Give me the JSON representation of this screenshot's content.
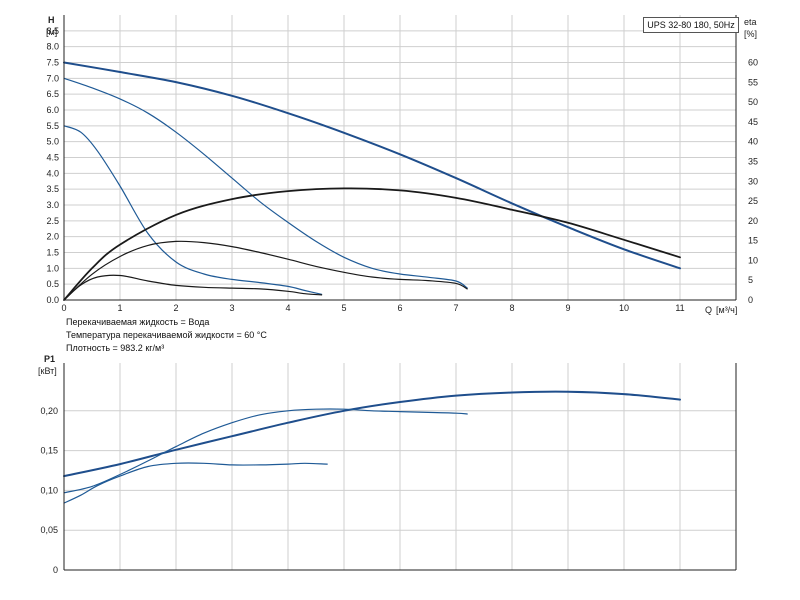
{
  "chart_data": [
    {
      "type": "line",
      "title": "UPS 32-80 180, 50Hz",
      "y_label": "H",
      "y_unit": "[м]",
      "y2_label": "eta",
      "y2_unit": "[%]",
      "x_label": "Q",
      "x_unit": "[м³/ч]",
      "xlim": [
        0,
        12
      ],
      "ylim": [
        0,
        9
      ],
      "y2lim": [
        0,
        72
      ],
      "x_ticks": [
        "0",
        "1",
        "2",
        "3",
        "4",
        "5",
        "6",
        "7",
        "8",
        "9",
        "10",
        "11"
      ],
      "y_ticks": [
        "0.0",
        "0.5",
        "1.0",
        "1.5",
        "2.0",
        "2.5",
        "3.0",
        "3.5",
        "4.0",
        "4.5",
        "5.0",
        "5.5",
        "6.0",
        "6.5",
        "7.0",
        "7.5",
        "8.0",
        "8.5"
      ],
      "y2_ticks": [
        "0",
        "5",
        "10",
        "15",
        "20",
        "25",
        "30",
        "35",
        "40",
        "45",
        "50",
        "55",
        "60"
      ],
      "grid": true,
      "series": [
        {
          "axis": "left",
          "color": "#1f4e8c",
          "width": 2,
          "x": [
            0,
            1,
            2,
            3,
            4,
            5,
            6,
            7,
            8,
            9,
            10,
            11
          ],
          "y": [
            7.5,
            7.2,
            6.88,
            6.45,
            5.9,
            5.28,
            4.6,
            3.85,
            3.05,
            2.3,
            1.6,
            1.0
          ]
        },
        {
          "axis": "left",
          "color": "#1f5a96",
          "width": 1.2,
          "x": [
            0,
            0.5,
            1,
            1.5,
            2,
            2.5,
            3,
            3.5,
            4,
            4.5,
            5,
            5.5,
            6,
            6.5,
            7,
            7.2
          ],
          "y": [
            7.0,
            6.7,
            6.35,
            5.9,
            5.3,
            4.6,
            3.85,
            3.1,
            2.45,
            1.85,
            1.35,
            1.0,
            0.82,
            0.72,
            0.6,
            0.38
          ]
        },
        {
          "axis": "left",
          "color": "#1f5a96",
          "width": 1.2,
          "x": [
            0,
            0.3,
            0.6,
            1,
            1.5,
            2,
            2.5,
            3,
            3.5,
            4,
            4.3,
            4.6
          ],
          "y": [
            5.5,
            5.3,
            4.7,
            3.6,
            2.1,
            1.2,
            0.82,
            0.65,
            0.55,
            0.43,
            0.3,
            0.18
          ]
        },
        {
          "axis": "right",
          "color": "#1a1a1a",
          "width": 1.8,
          "x": [
            0,
            0.5,
            1,
            2,
            3,
            4,
            5,
            6,
            7,
            8,
            9,
            10,
            11
          ],
          "y": [
            0,
            8,
            14,
            21.5,
            25.5,
            27.5,
            28.2,
            27.7,
            25.8,
            22.8,
            19.5,
            15.2,
            10.8
          ]
        },
        {
          "axis": "right",
          "color": "#1a1a1a",
          "width": 1.2,
          "x": [
            0,
            0.5,
            1,
            1.5,
            2,
            2.5,
            3,
            3.5,
            4,
            4.5,
            5,
            5.5,
            6,
            6.5,
            7,
            7.2
          ],
          "y": [
            0,
            6.5,
            11,
            13.8,
            14.8,
            14.5,
            13.5,
            12,
            10.3,
            8.5,
            7,
            5.8,
            5.2,
            4.9,
            4.2,
            2.8
          ]
        },
        {
          "axis": "right",
          "color": "#1a1a1a",
          "width": 1.2,
          "x": [
            0,
            0.3,
            0.6,
            1,
            1.5,
            2,
            2.5,
            3,
            3.5,
            4,
            4.3,
            4.6
          ],
          "y": [
            0,
            3.8,
            5.8,
            6.2,
            4.8,
            3.7,
            3.2,
            3.0,
            2.8,
            2.2,
            1.6,
            1.3
          ]
        }
      ]
    },
    {
      "type": "line",
      "y_label": "P1",
      "y_unit": "[кВт]",
      "xlim": [
        0,
        12
      ],
      "ylim": [
        0,
        0.26
      ],
      "y_ticks": [
        "0",
        "0,05",
        "0,10",
        "0,15",
        "0,20"
      ],
      "grid": true,
      "series": [
        {
          "color": "#1f4e8c",
          "width": 2,
          "x": [
            0,
            1,
            2,
            3,
            4,
            5,
            6,
            7,
            8,
            9,
            10,
            11
          ],
          "y": [
            0.118,
            0.133,
            0.151,
            0.168,
            0.185,
            0.2,
            0.211,
            0.219,
            0.223,
            0.224,
            0.221,
            0.214
          ]
        },
        {
          "color": "#1f5a96",
          "width": 1.2,
          "x": [
            0,
            0.5,
            1,
            1.5,
            2,
            2.5,
            3,
            3.5,
            4,
            4.5,
            5,
            5.5,
            6,
            6.5,
            7,
            7.2
          ],
          "y": [
            0.097,
            0.105,
            0.12,
            0.137,
            0.155,
            0.172,
            0.185,
            0.195,
            0.2,
            0.202,
            0.202,
            0.2,
            0.199,
            0.198,
            0.197,
            0.196
          ]
        },
        {
          "color": "#1f5a96",
          "width": 1.2,
          "x": [
            0,
            0.3,
            0.6,
            1,
            1.5,
            2,
            2.5,
            3,
            3.5,
            4,
            4.3,
            4.7
          ],
          "y": [
            0.084,
            0.094,
            0.106,
            0.118,
            0.13,
            0.134,
            0.134,
            0.132,
            0.132,
            0.133,
            0.134,
            0.133
          ]
        }
      ]
    }
  ],
  "notes": [
    "Перекачиваемая жидкость = Вода",
    "Температура перекачиваемой жидкости = 60 °C",
    "Плотность = 983.2 кг/м³"
  ]
}
